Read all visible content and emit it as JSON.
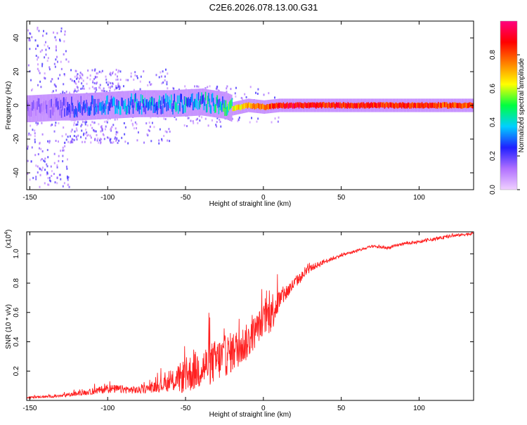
{
  "title": "C2E6.2026.078.13.00.G31",
  "chart_data": [
    {
      "type": "heatmap",
      "name": "spectrogram",
      "xlabel": "Height of straight line (km)",
      "ylabel": "Frequency (Hz)",
      "xlim": [
        -152,
        135
      ],
      "ylim": [
        -50,
        50
      ],
      "xticks": [
        -150,
        -100,
        -50,
        0,
        50,
        100
      ],
      "yticks": [
        -40,
        -20,
        0,
        20,
        40
      ],
      "colorbar": {
        "label": "Normalized spectral amplitude",
        "range": [
          0,
          1
        ],
        "ticks": [
          0.0,
          0.2,
          0.4,
          0.6,
          0.8
        ],
        "colormap": [
          "#f0d0ff",
          "#b070ff",
          "#2020ff",
          "#00d0ff",
          "#00ff40",
          "#ffff00",
          "#ff8000",
          "#ff0000",
          "#ff0080"
        ]
      },
      "ridge": {
        "x": [
          -150,
          -130,
          -120,
          -100,
          -80,
          -60,
          -40,
          -25,
          -20,
          -10,
          0,
          10,
          20,
          50,
          100,
          135
        ],
        "center_freq": [
          -2,
          -1,
          -1,
          0,
          1,
          1,
          2,
          0,
          -2,
          0,
          -1,
          0,
          0,
          0,
          0,
          0
        ],
        "amplitude": [
          0.15,
          0.2,
          0.3,
          0.35,
          0.4,
          0.4,
          0.45,
          0.5,
          0.65,
          0.75,
          0.8,
          0.9,
          0.95,
          0.9,
          0.88,
          0.85
        ]
      }
    },
    {
      "type": "line",
      "name": "snr",
      "xlabel": "Height of straight line (km)",
      "ylabel": "SNR (10 * v/v)",
      "y_scale_note": "(x10",
      "y_scale_exp": "4",
      "xlim": [
        -152,
        135
      ],
      "ylim": [
        0,
        1.15
      ],
      "xticks": [
        -150,
        -100,
        -50,
        0,
        50,
        100
      ],
      "yticks": [
        0.2,
        0.4,
        0.6,
        0.8,
        1.0
      ],
      "color": "#ff2020",
      "envelope": {
        "x": [
          -152,
          -130,
          -110,
          -100,
          -80,
          -70,
          -60,
          -50,
          -40,
          -30,
          -20,
          -10,
          0,
          5,
          10,
          20,
          30,
          40,
          50,
          60,
          70,
          80,
          90,
          100,
          110,
          120,
          135
        ],
        "base": [
          0.02,
          0.03,
          0.06,
          0.08,
          0.07,
          0.09,
          0.12,
          0.17,
          0.22,
          0.27,
          0.33,
          0.4,
          0.55,
          0.6,
          0.68,
          0.8,
          0.9,
          0.95,
          0.99,
          1.02,
          1.05,
          1.04,
          1.07,
          1.08,
          1.1,
          1.12,
          1.14
        ],
        "spread": [
          0.01,
          0.02,
          0.04,
          0.06,
          0.05,
          0.07,
          0.12,
          0.25,
          0.28,
          0.3,
          0.28,
          0.25,
          0.2,
          0.3,
          0.15,
          0.08,
          0.05,
          0.03,
          0.02,
          0.02,
          0.02,
          0.02,
          0.02,
          0.02,
          0.02,
          0.02,
          0.02
        ]
      }
    }
  ]
}
